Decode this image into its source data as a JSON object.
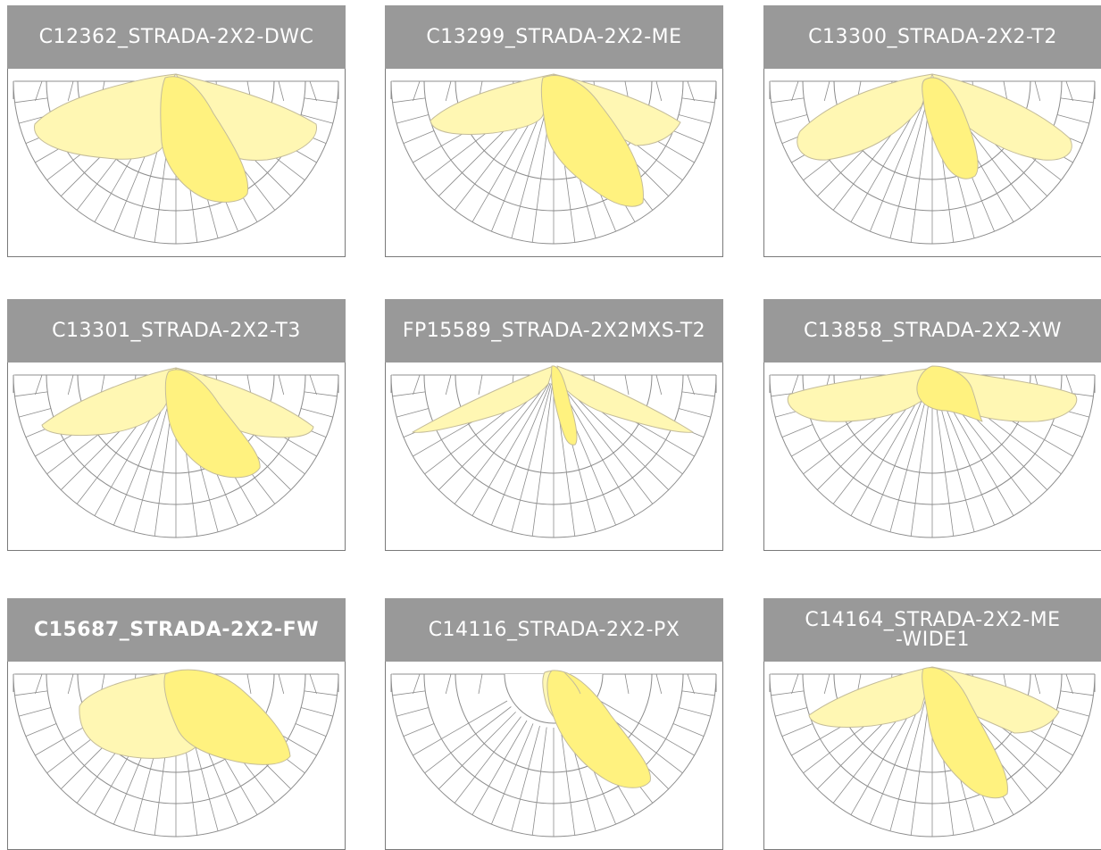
{
  "colors": {
    "header_bg": "#999999",
    "header_text": "#ffffff",
    "grid": "#8c8c8c",
    "lobe_pale": "#fff7b3",
    "lobe_strong": "#fff27f",
    "lobe_edge": "#c4bc9a"
  },
  "cards": [
    {
      "title": "C12362_STRADA-2X2-DWC",
      "bold": false,
      "pattern": "dwc"
    },
    {
      "title": "C13299_STRADA-2X2-ME",
      "bold": false,
      "pattern": "me"
    },
    {
      "title": "C13300_STRADA-2X2-T2",
      "bold": false,
      "pattern": "t2"
    },
    {
      "title": "C13301_STRADA-2X2-T3",
      "bold": false,
      "pattern": "t3"
    },
    {
      "title": "FP15589_STRADA-2X2MXS-T2",
      "bold": false,
      "pattern": "mxs-t2"
    },
    {
      "title": "C13858_STRADA-2X2-XW",
      "bold": false,
      "pattern": "xw"
    },
    {
      "title": "C15687_STRADA-2X2-FW",
      "bold": true,
      "pattern": "fw"
    },
    {
      "title": "C14116_STRADA-2X2-PX",
      "bold": false,
      "pattern": "px"
    },
    {
      "title": "C14164_STRADA-2X2-ME\n-WIDE1",
      "bold": false,
      "pattern": "me-wide1"
    }
  ]
}
